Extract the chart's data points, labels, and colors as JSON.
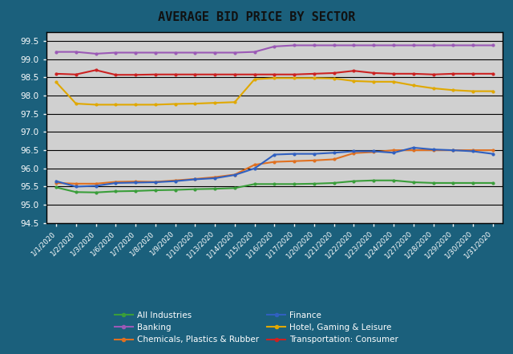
{
  "title": "AVERAGE BID PRICE BY SECTOR",
  "dates": [
    "1/1/2020",
    "1/2/2020",
    "1/3/2020",
    "1/6/2020",
    "1/7/2020",
    "1/8/2020",
    "1/9/2020",
    "1/10/2020",
    "1/13/2020",
    "1/14/2020",
    "1/15/2020",
    "1/16/2020",
    "1/17/2020",
    "1/20/2020",
    "1/21/2020",
    "1/22/2020",
    "1/23/2020",
    "1/24/2020",
    "1/27/2020",
    "1/28/2020",
    "1/29/2020",
    "1/30/2020",
    "1/31/2020"
  ],
  "series": {
    "All Industries": {
      "color": "#3a9e3a",
      "values": [
        95.48,
        95.35,
        95.34,
        95.37,
        95.38,
        95.4,
        95.41,
        95.43,
        95.44,
        95.46,
        95.57,
        95.57,
        95.57,
        95.58,
        95.6,
        95.65,
        95.67,
        95.67,
        95.62,
        95.6,
        95.6,
        95.6,
        95.6
      ]
    },
    "Banking": {
      "color": "#9b59b6",
      "values": [
        99.2,
        99.2,
        99.15,
        99.18,
        99.18,
        99.18,
        99.18,
        99.18,
        99.18,
        99.18,
        99.2,
        99.35,
        99.38,
        99.38,
        99.38,
        99.38,
        99.38,
        99.38,
        99.38,
        99.38,
        99.38,
        99.38,
        99.38
      ]
    },
    "Chemicals, Plastics & Rubber": {
      "color": "#e07020",
      "values": [
        95.6,
        95.58,
        95.58,
        95.63,
        95.64,
        95.63,
        95.67,
        95.71,
        95.76,
        95.83,
        96.1,
        96.18,
        96.2,
        96.22,
        96.25,
        96.42,
        96.45,
        96.5,
        96.5,
        96.5,
        96.5,
        96.5,
        96.5
      ]
    },
    "Finance": {
      "color": "#3060c0",
      "values": [
        95.65,
        95.5,
        95.52,
        95.6,
        95.61,
        95.62,
        95.65,
        95.7,
        95.73,
        95.82,
        96.0,
        96.38,
        96.4,
        96.4,
        96.43,
        96.47,
        96.47,
        96.43,
        96.57,
        96.52,
        96.5,
        96.47,
        96.4
      ]
    },
    "Hotel, Gaming & Leisure": {
      "color": "#e0a800",
      "values": [
        98.37,
        97.78,
        97.75,
        97.75,
        97.75,
        97.75,
        97.77,
        97.78,
        97.8,
        97.82,
        98.45,
        98.48,
        98.48,
        98.48,
        98.47,
        98.4,
        98.38,
        98.38,
        98.28,
        98.2,
        98.15,
        98.12,
        98.12
      ]
    },
    "Transportation: Consumer": {
      "color": "#cc2222",
      "values": [
        98.6,
        98.58,
        98.7,
        98.57,
        98.57,
        98.58,
        98.58,
        98.58,
        98.58,
        98.58,
        98.58,
        98.58,
        98.58,
        98.6,
        98.62,
        98.68,
        98.62,
        98.6,
        98.6,
        98.58,
        98.6,
        98.6,
        98.6
      ]
    }
  },
  "ylim": [
    94.5,
    99.75
  ],
  "yticks": [
    94.5,
    95.0,
    95.5,
    96.0,
    96.5,
    97.0,
    97.5,
    98.0,
    98.5,
    99.0,
    99.5
  ],
  "background_color": "#d0d0d0",
  "outer_background": "#1b607c",
  "title_color": "#111111",
  "title_bg": "#c8c8c8",
  "grid_color": "#000000",
  "legend_order": [
    "All Industries",
    "Banking",
    "Chemicals, Plastics & Rubber",
    "Finance",
    "Hotel, Gaming & Leisure",
    "Transportation: Consumer"
  ],
  "legend_ncol": 2
}
